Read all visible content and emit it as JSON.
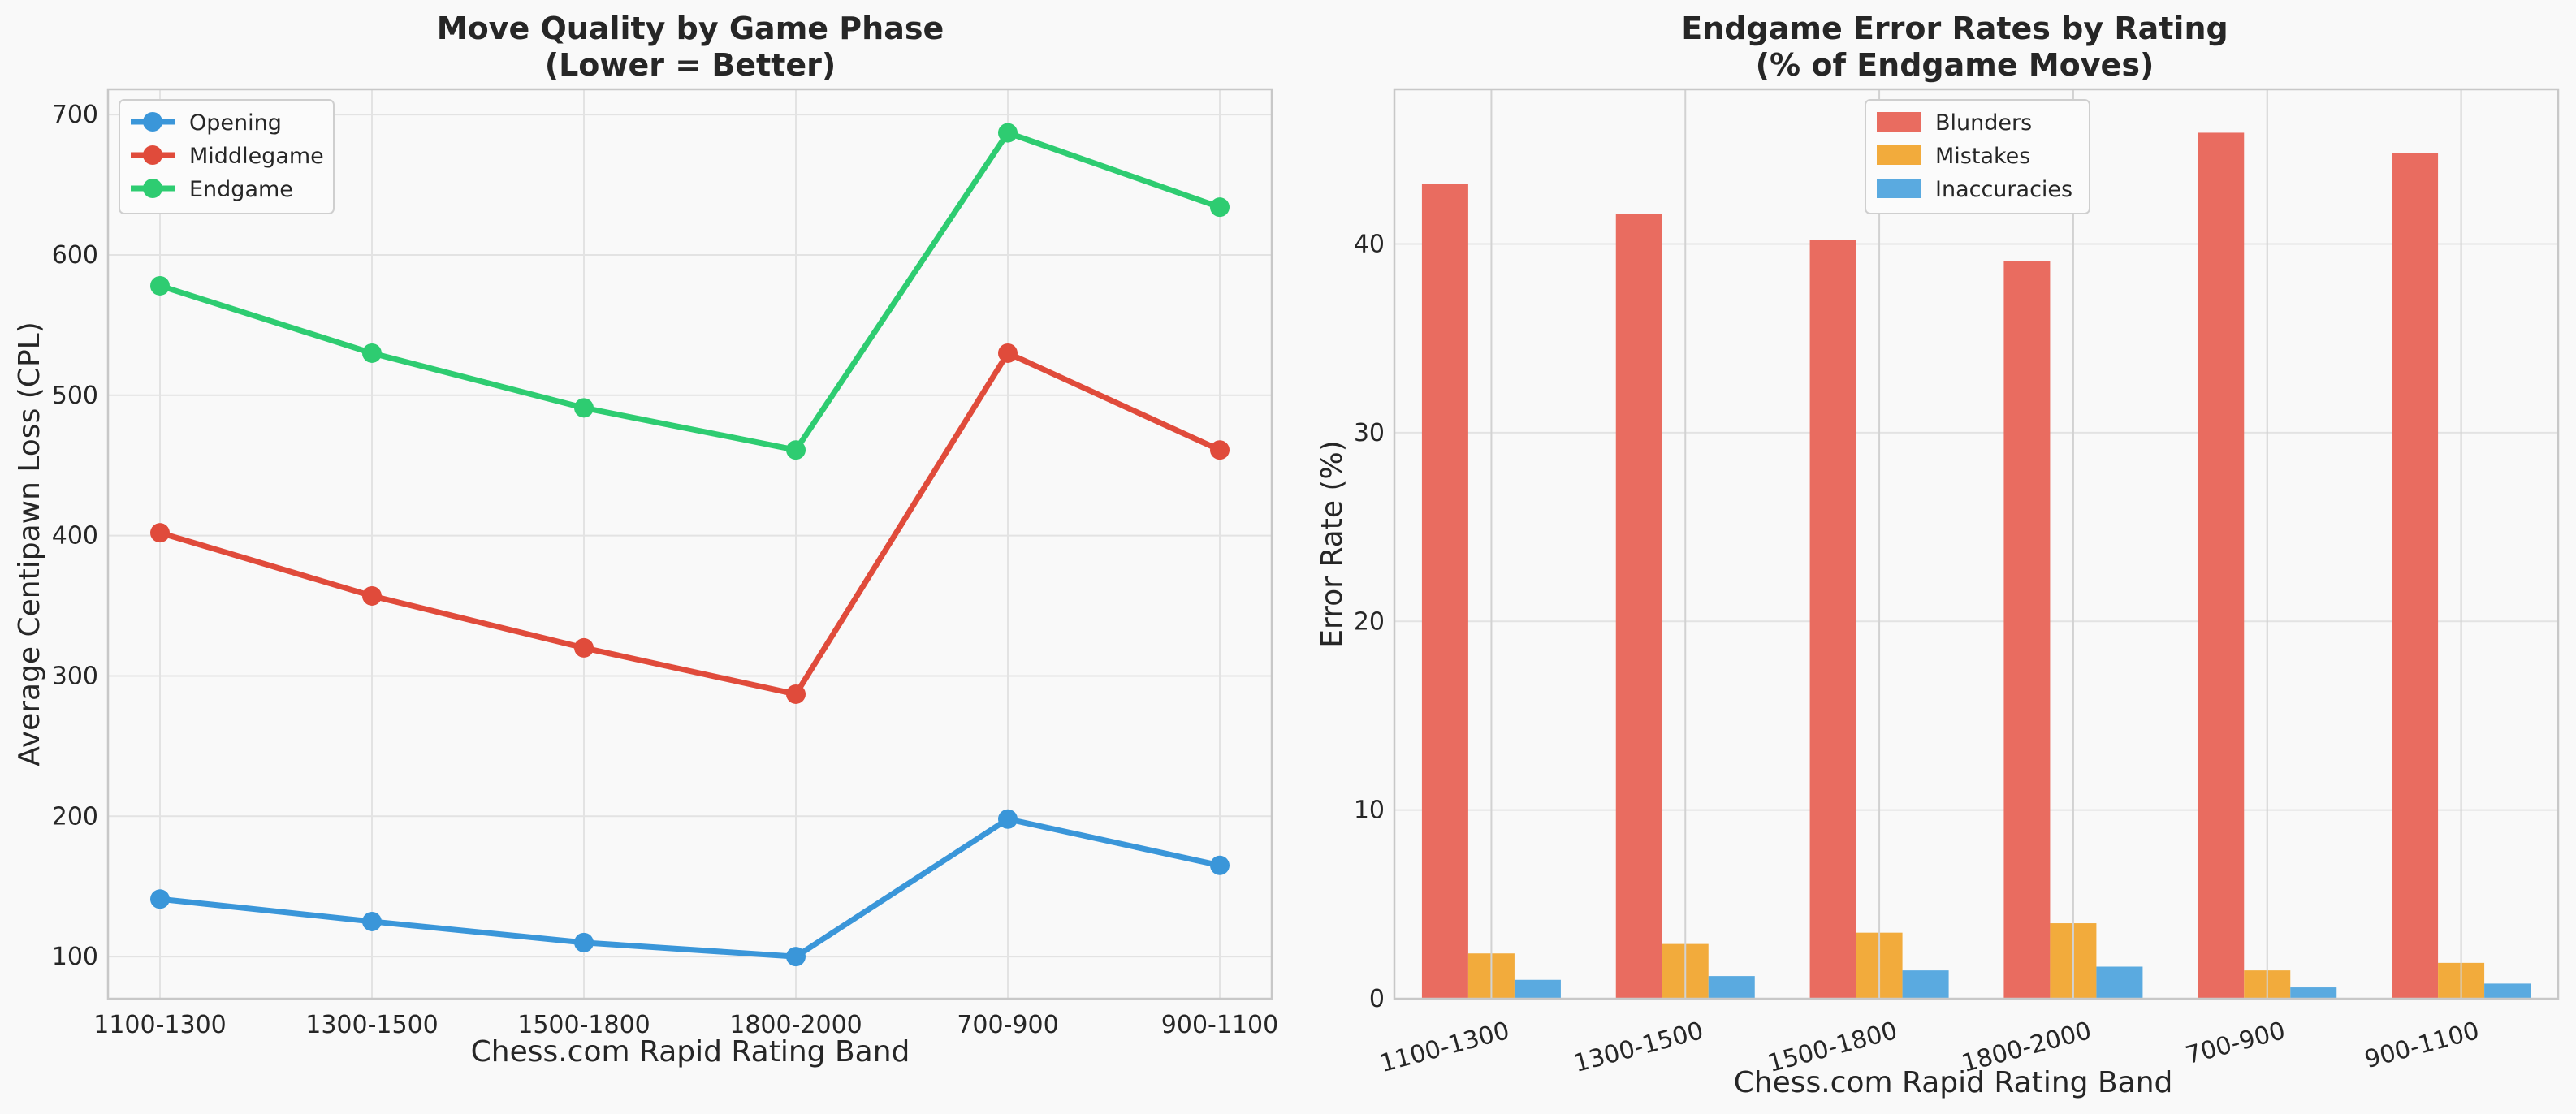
{
  "chart_data": [
    {
      "type": "line",
      "title_line1": "Move Quality by Game Phase",
      "title_line2": "(Lower = Better)",
      "xlabel": "Chess.com Rapid Rating Band",
      "ylabel": "Average Centipawn Loss (CPL)",
      "categories": [
        "1100-1300",
        "1300-1500",
        "1500-1800",
        "1800-2000",
        "700-900",
        "900-1100"
      ],
      "ylim": [
        70,
        718
      ],
      "yticks": [
        100,
        200,
        300,
        400,
        500,
        600,
        700
      ],
      "grid": true,
      "legend_position": "upper left",
      "series": [
        {
          "name": "Opening",
          "color": "#3a96d9",
          "values": [
            141,
            125,
            110,
            100,
            198,
            165
          ]
        },
        {
          "name": "Middlegame",
          "color": "#e04b3b",
          "values": [
            402,
            357,
            320,
            287,
            530,
            461
          ]
        },
        {
          "name": "Endgame",
          "color": "#2ecc71",
          "values": [
            578,
            530,
            491,
            461,
            687,
            634
          ]
        }
      ]
    },
    {
      "type": "bar",
      "title_line1": "Endgame Error Rates by Rating",
      "title_line2": "(% of Endgame Moves)",
      "xlabel": "Chess.com Rapid Rating Band",
      "ylabel": "Error Rate (%)",
      "categories": [
        "1100-1300",
        "1300-1500",
        "1500-1800",
        "1800-2000",
        "700-900",
        "900-1100"
      ],
      "ylim": [
        0,
        48.2
      ],
      "yticks": [
        0,
        10,
        20,
        30,
        40
      ],
      "grid": true,
      "legend_position": "upper center",
      "series": [
        {
          "name": "Blunders",
          "color": "#e96c60",
          "values": [
            43.2,
            41.6,
            40.2,
            39.1,
            45.9,
            44.8
          ]
        },
        {
          "name": "Mistakes",
          "color": "#f2ab3c",
          "values": [
            2.4,
            2.9,
            3.5,
            4.0,
            1.5,
            1.9
          ]
        },
        {
          "name": "Inaccuracies",
          "color": "#5aaae0",
          "values": [
            1.0,
            1.2,
            1.5,
            1.7,
            0.6,
            0.8
          ]
        }
      ]
    }
  ]
}
